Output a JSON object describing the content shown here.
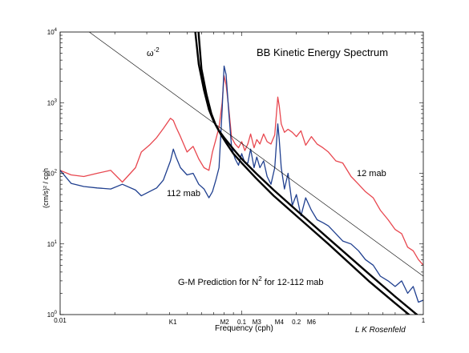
{
  "chart_data": {
    "type": "line",
    "title": "BB Kinetic Energy Spectrum",
    "xlabel": "Frequency (cph)",
    "ylabel": "(cm/s)² / cph",
    "xscale": "log",
    "yscale": "log",
    "xlim": [
      0.01,
      1
    ],
    "ylim": [
      1,
      10000
    ],
    "x_tick_labels": [
      {
        "x": 0.01,
        "label": "0.01"
      },
      {
        "x": 1,
        "label": "1"
      }
    ],
    "x_tick_labels_bottom": [
      {
        "x": 0.0418,
        "label": "K1"
      },
      {
        "x": 0.0805,
        "label": "M2"
      },
      {
        "x": 0.1,
        "label": "0.1"
      },
      {
        "x": 0.121,
        "label": "M3"
      },
      {
        "x": 0.161,
        "label": "M4"
      },
      {
        "x": 0.2,
        "label": "0.2"
      },
      {
        "x": 0.242,
        "label": "M6"
      }
    ],
    "y_tick_labels": [
      {
        "y": 1,
        "base": "10",
        "exp": "0"
      },
      {
        "y": 10,
        "base": "10",
        "exp": "1"
      },
      {
        "y": 100,
        "base": "10",
        "exp": "2"
      },
      {
        "y": 1000,
        "base": "10",
        "exp": "3"
      },
      {
        "y": 10000,
        "base": "10",
        "exp": "4"
      }
    ],
    "annotations": {
      "omega": "ω",
      "omega_exp": "-2",
      "gm_pre": "G-M Prediction for N",
      "gm_exp": "2",
      "gm_post": " for 12-112 mab",
      "credit": "L K Rosenfeld"
    },
    "colors": {
      "red": "#e8474f",
      "blue": "#1f3f8f",
      "black": "#000000"
    },
    "series": [
      {
        "name": "12 mab",
        "color": "#e8474f",
        "x": [
          0.01,
          0.0115,
          0.0135,
          0.016,
          0.019,
          0.022,
          0.026,
          0.028,
          0.031,
          0.034,
          0.037,
          0.0405,
          0.042,
          0.0435,
          0.046,
          0.05,
          0.054,
          0.058,
          0.062,
          0.066,
          0.069,
          0.072,
          0.075,
          0.078,
          0.08,
          0.082,
          0.085,
          0.088,
          0.092,
          0.096,
          0.1,
          0.104,
          0.108,
          0.112,
          0.117,
          0.121,
          0.126,
          0.132,
          0.138,
          0.145,
          0.152,
          0.158,
          0.161,
          0.165,
          0.172,
          0.18,
          0.19,
          0.2,
          0.212,
          0.225,
          0.242,
          0.26,
          0.28,
          0.3,
          0.33,
          0.36,
          0.4,
          0.44,
          0.48,
          0.53,
          0.58,
          0.64,
          0.7,
          0.76,
          0.82,
          0.88,
          0.94,
          1.0
        ],
        "y": [
          110,
          95,
          90,
          100,
          110,
          75,
          120,
          200,
          250,
          320,
          430,
          600,
          560,
          450,
          330,
          200,
          240,
          160,
          120,
          110,
          200,
          300,
          450,
          1000,
          2400,
          1800,
          800,
          320,
          260,
          230,
          280,
          210,
          260,
          360,
          230,
          300,
          260,
          360,
          280,
          260,
          350,
          1200,
          900,
          500,
          380,
          420,
          380,
          330,
          400,
          250,
          330,
          260,
          230,
          200,
          150,
          140,
          90,
          70,
          55,
          45,
          30,
          22,
          16,
          14,
          9,
          8,
          6,
          5
        ]
      },
      {
        "name": "112 mab",
        "color": "#1f3f8f",
        "x": [
          0.01,
          0.0115,
          0.0135,
          0.016,
          0.019,
          0.022,
          0.026,
          0.028,
          0.031,
          0.034,
          0.037,
          0.0405,
          0.042,
          0.0435,
          0.046,
          0.05,
          0.054,
          0.058,
          0.062,
          0.066,
          0.069,
          0.072,
          0.075,
          0.078,
          0.08,
          0.082,
          0.085,
          0.088,
          0.092,
          0.096,
          0.1,
          0.104,
          0.108,
          0.112,
          0.117,
          0.121,
          0.126,
          0.132,
          0.138,
          0.145,
          0.152,
          0.158,
          0.161,
          0.165,
          0.172,
          0.18,
          0.19,
          0.2,
          0.212,
          0.225,
          0.242,
          0.26,
          0.28,
          0.3,
          0.33,
          0.36,
          0.4,
          0.44,
          0.48,
          0.53,
          0.58,
          0.64,
          0.7,
          0.76,
          0.82,
          0.88,
          0.94,
          1.0
        ],
        "y": [
          110,
          72,
          65,
          62,
          60,
          70,
          58,
          48,
          55,
          62,
          80,
          150,
          220,
          170,
          120,
          95,
          100,
          70,
          60,
          45,
          55,
          80,
          120,
          800,
          3300,
          2500,
          700,
          230,
          160,
          130,
          190,
          140,
          140,
          220,
          120,
          170,
          120,
          150,
          90,
          70,
          120,
          500,
          300,
          120,
          60,
          100,
          35,
          50,
          25,
          45,
          30,
          22,
          20,
          18,
          14,
          11,
          10,
          8,
          6,
          5,
          3.5,
          3,
          2.5,
          3,
          2,
          2.5,
          1.5,
          1.6
        ]
      },
      {
        "name": "",
        "color": "#000000",
        "style": "thin",
        "x": [
          0.01,
          1.0
        ],
        "y": [
          20000,
          3.5
        ]
      },
      {
        "name": "",
        "color": "#000000",
        "style": "thick",
        "x": [
          0.0555,
          0.058,
          0.062,
          0.066,
          0.07,
          0.075,
          0.08,
          0.09,
          0.1,
          0.12,
          0.15,
          0.2,
          0.3,
          0.5,
          0.7,
          0.9,
          1.0
        ],
        "y": [
          10000,
          3500,
          1500,
          800,
          550,
          400,
          320,
          220,
          160,
          100,
          58,
          30,
          12,
          3.8,
          1.8,
          1.05,
          0.85
        ]
      },
      {
        "name": "",
        "color": "#000000",
        "style": "thick",
        "x": [
          0.0578,
          0.06,
          0.064,
          0.068,
          0.072,
          0.077,
          0.082,
          0.09,
          0.1,
          0.12,
          0.15,
          0.2,
          0.3,
          0.5,
          0.7,
          0.9,
          1.0
        ],
        "y": [
          10000,
          3000,
          1300,
          700,
          480,
          350,
          270,
          190,
          140,
          85,
          48,
          25,
          10,
          3.0,
          1.45,
          0.85,
          0.7
        ]
      }
    ],
    "grid": false
  }
}
